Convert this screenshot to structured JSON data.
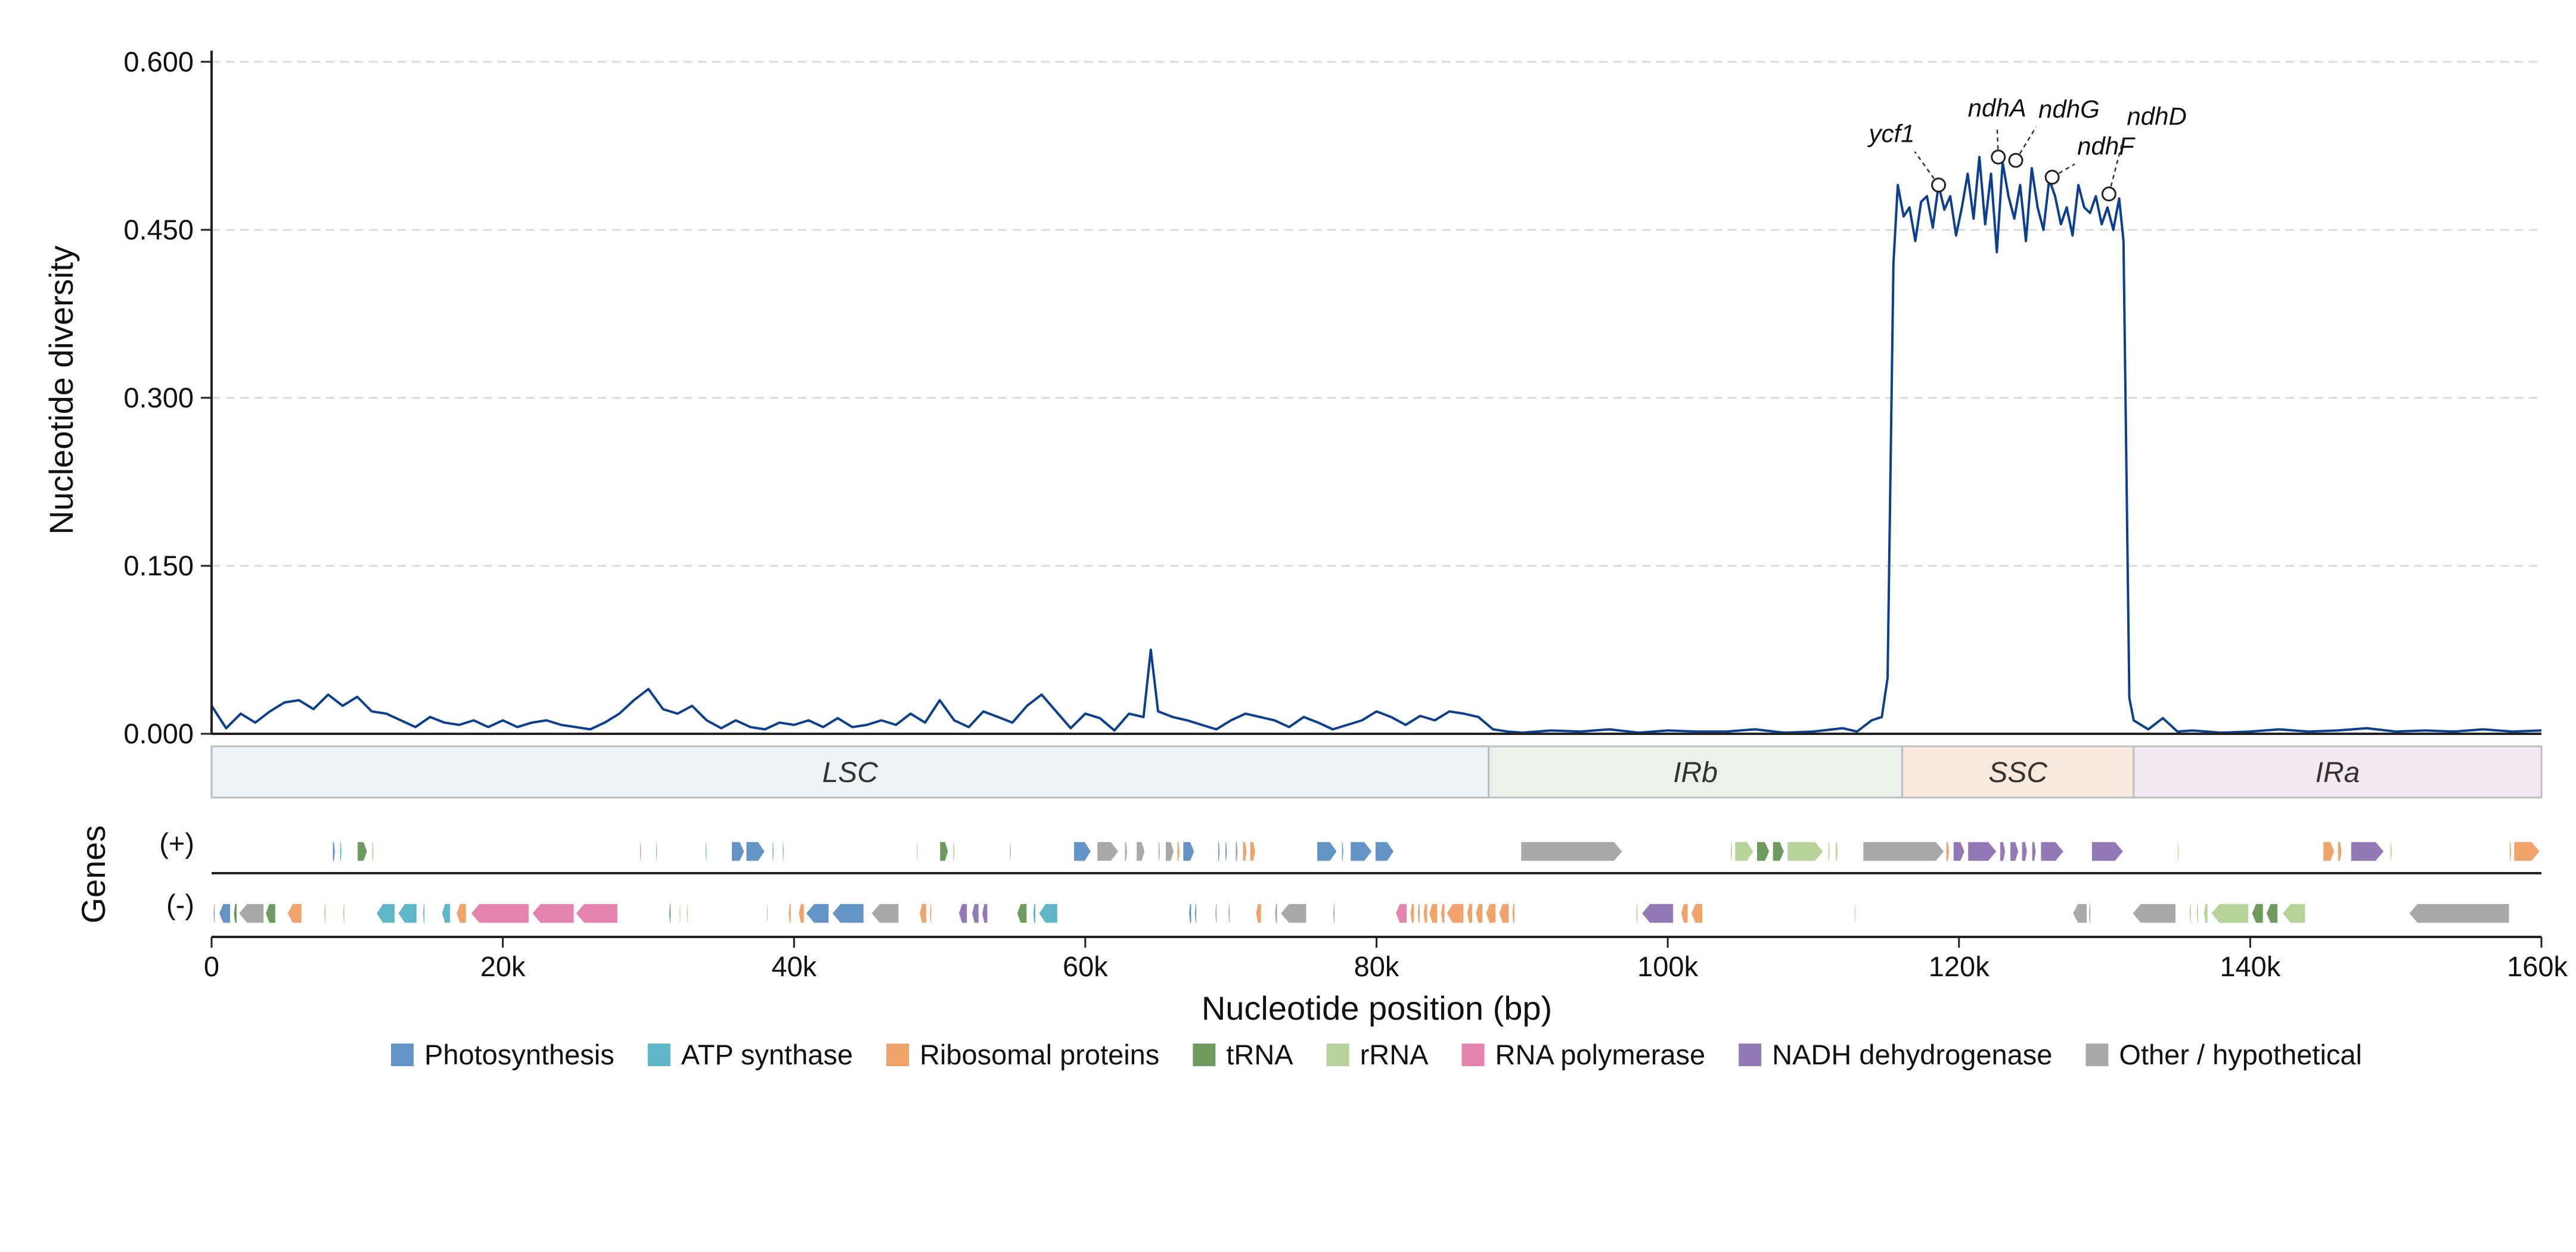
{
  "chart_data": {
    "type": "line",
    "ylabel": "Nucleotide diversity",
    "xlabel": "Nucleotide position (bp)",
    "track_label": "Genes",
    "strand_labels": [
      "(+)",
      "(-)"
    ],
    "xlim": [
      0,
      160000
    ],
    "ylim": [
      0,
      0.61
    ],
    "y_ticks": [
      0.0,
      0.15,
      0.3,
      0.45,
      0.6
    ],
    "y_tick_labels": [
      "0.000",
      "0.150",
      "0.300",
      "0.450",
      "0.600"
    ],
    "x_ticks": [
      0,
      20000,
      40000,
      60000,
      80000,
      100000,
      120000,
      140000,
      160000
    ],
    "x_tick_labels": [
      "0",
      "20k",
      "40k",
      "60k",
      "80k",
      "100k",
      "120k",
      "140k",
      "160k"
    ],
    "grid": "horizontal dashed",
    "line_color": "#0d3f8f",
    "series": [
      {
        "x": [
          0,
          1000,
          2000,
          3000,
          4000,
          5000,
          6000,
          7000,
          8000,
          9000,
          10000,
          11000,
          12000,
          13000,
          14000,
          15000,
          16000,
          17000,
          18000,
          19000,
          20000,
          21000,
          22000,
          23000,
          24000,
          25000,
          26000,
          27000,
          28000,
          29000,
          30000,
          31000,
          32000,
          33000,
          34000,
          35000,
          36000,
          37000,
          38000,
          39000,
          40000,
          41000,
          42000,
          43000,
          44000,
          45000,
          46000,
          47000,
          48000,
          49000,
          50000,
          51000,
          52000,
          53000,
          54000,
          55000,
          56000,
          57000,
          58000,
          59000,
          60000,
          61000,
          62000,
          63000,
          64000,
          64500,
          65000,
          66000,
          67000,
          68000,
          69000,
          70000,
          71000,
          72000,
          73000,
          74000,
          75000,
          76000,
          77000,
          78000,
          79000,
          80000,
          81000,
          82000,
          83000,
          84000,
          85000,
          86000,
          87000,
          88000,
          89000,
          90000,
          92000,
          94000,
          96000,
          98000,
          100000,
          102000,
          104000,
          106000,
          108000,
          110000,
          112000,
          113000,
          114000,
          114700,
          115100,
          115500,
          115800,
          116200,
          116600,
          117000,
          117400,
          117800,
          118200,
          118600,
          119000,
          119400,
          119800,
          120200,
          120600,
          121000,
          121400,
          121800,
          122200,
          122600,
          123000,
          123400,
          123800,
          124200,
          124600,
          125000,
          125400,
          125800,
          126200,
          126600,
          127000,
          127400,
          127800,
          128200,
          128600,
          129000,
          129400,
          129800,
          130200,
          130600,
          131000,
          131300,
          131700,
          132000,
          132500,
          133000,
          134000,
          135000,
          136000,
          138000,
          140000,
          142000,
          144000,
          146000,
          148000,
          150000,
          152000,
          154000,
          156000,
          158000,
          160000
        ],
        "y": [
          0.025,
          0.005,
          0.018,
          0.01,
          0.02,
          0.028,
          0.03,
          0.022,
          0.035,
          0.025,
          0.033,
          0.02,
          0.018,
          0.012,
          0.006,
          0.015,
          0.01,
          0.008,
          0.012,
          0.006,
          0.012,
          0.006,
          0.01,
          0.012,
          0.008,
          0.006,
          0.004,
          0.01,
          0.018,
          0.03,
          0.04,
          0.022,
          0.018,
          0.025,
          0.012,
          0.005,
          0.012,
          0.006,
          0.004,
          0.01,
          0.008,
          0.012,
          0.006,
          0.014,
          0.006,
          0.008,
          0.012,
          0.008,
          0.018,
          0.01,
          0.03,
          0.012,
          0.006,
          0.02,
          0.015,
          0.01,
          0.025,
          0.035,
          0.02,
          0.005,
          0.018,
          0.014,
          0.003,
          0.018,
          0.015,
          0.075,
          0.02,
          0.015,
          0.012,
          0.008,
          0.004,
          0.012,
          0.018,
          0.015,
          0.012,
          0.006,
          0.015,
          0.01,
          0.004,
          0.008,
          0.012,
          0.02,
          0.015,
          0.008,
          0.016,
          0.012,
          0.02,
          0.018,
          0.015,
          0.004,
          0.002,
          0.001,
          0.003,
          0.002,
          0.004,
          0.001,
          0.003,
          0.002,
          0.002,
          0.004,
          0.001,
          0.002,
          0.005,
          0.002,
          0.012,
          0.015,
          0.05,
          0.42,
          0.49,
          0.462,
          0.47,
          0.44,
          0.475,
          0.48,
          0.452,
          0.49,
          0.468,
          0.48,
          0.445,
          0.47,
          0.5,
          0.46,
          0.515,
          0.455,
          0.5,
          0.43,
          0.51,
          0.48,
          0.46,
          0.49,
          0.44,
          0.505,
          0.47,
          0.45,
          0.495,
          0.48,
          0.455,
          0.47,
          0.445,
          0.49,
          0.47,
          0.465,
          0.48,
          0.455,
          0.47,
          0.45,
          0.478,
          0.44,
          0.032,
          0.012,
          0.008,
          0.004,
          0.014,
          0.002,
          0.003,
          0.001,
          0.002,
          0.004,
          0.002,
          0.003,
          0.005,
          0.002,
          0.003,
          0.002,
          0.004,
          0.002,
          0.003
        ]
      }
    ],
    "annotations": [
      {
        "label": "ycf1",
        "x": 118600,
        "y": 0.49
      },
      {
        "label": "ndhA",
        "x": 122700,
        "y": 0.515
      },
      {
        "label": "ndhG",
        "x": 123900,
        "y": 0.512
      },
      {
        "label": "ndhF",
        "x": 126400,
        "y": 0.497
      },
      {
        "label": "ndhD",
        "x": 130300,
        "y": 0.482
      }
    ],
    "regions": [
      {
        "name": "LSC",
        "start": 0,
        "end": 87700,
        "color": "#eef2f5"
      },
      {
        "name": "IRb",
        "start": 87700,
        "end": 116100,
        "color": "#ebf2e9"
      },
      {
        "name": "SSC",
        "start": 116100,
        "end": 132000,
        "color": "#f9e9dc"
      },
      {
        "name": "IRa",
        "start": 132000,
        "end": 160000,
        "color": "#f1e8f0"
      }
    ],
    "categories": [
      {
        "name": "Photosynthesis",
        "color": "#6494c6"
      },
      {
        "name": "ATP synthase",
        "color": "#5fb6c6"
      },
      {
        "name": "Ribosomal proteins",
        "color": "#f0a46b"
      },
      {
        "name": "tRNA",
        "color": "#6e9a5e"
      },
      {
        "name": "rRNA",
        "color": "#b5d39a"
      },
      {
        "name": "RNA polymerase",
        "color": "#e284ad"
      },
      {
        "name": "NADH dehydrogenase",
        "color": "#9479b7"
      },
      {
        "name": "Other / hypothetical",
        "color": "#a9a9a9"
      }
    ],
    "genes_plus": [
      {
        "s": 8300,
        "e": 8500,
        "c": 0
      },
      {
        "s": 8800,
        "e": 8950,
        "c": 1
      },
      {
        "s": 10000,
        "e": 10700,
        "c": 3
      },
      {
        "s": 11000,
        "e": 11150,
        "c": 4
      },
      {
        "s": 29400,
        "e": 29500,
        "c": 5
      },
      {
        "s": 30500,
        "e": 30600,
        "c": 7
      },
      {
        "s": 33900,
        "e": 34000,
        "c": 1
      },
      {
        "s": 35700,
        "e": 36600,
        "c": 0
      },
      {
        "s": 36700,
        "e": 38000,
        "c": 0
      },
      {
        "s": 38500,
        "e": 38600,
        "c": 0
      },
      {
        "s": 39200,
        "e": 39300,
        "c": 1
      },
      {
        "s": 48400,
        "e": 48500,
        "c": 4
      },
      {
        "s": 50000,
        "e": 50600,
        "c": 3
      },
      {
        "s": 50900,
        "e": 51050,
        "c": 4
      },
      {
        "s": 54800,
        "e": 54900,
        "c": 7
      },
      {
        "s": 59200,
        "e": 60400,
        "c": 0
      },
      {
        "s": 60800,
        "e": 62300,
        "c": 7
      },
      {
        "s": 62700,
        "e": 62900,
        "c": 7
      },
      {
        "s": 63500,
        "e": 64100,
        "c": 7
      },
      {
        "s": 65000,
        "e": 65150,
        "c": 7
      },
      {
        "s": 65500,
        "e": 66100,
        "c": 7
      },
      {
        "s": 66300,
        "e": 66500,
        "c": 2
      },
      {
        "s": 66700,
        "e": 67500,
        "c": 0
      },
      {
        "s": 69100,
        "e": 69250,
        "c": 0
      },
      {
        "s": 69600,
        "e": 69750,
        "c": 0
      },
      {
        "s": 70300,
        "e": 70500,
        "c": 7
      },
      {
        "s": 70800,
        "e": 71100,
        "c": 2
      },
      {
        "s": 71300,
        "e": 71700,
        "c": 2
      },
      {
        "s": 75900,
        "e": 77300,
        "c": 0
      },
      {
        "s": 77600,
        "e": 77750,
        "c": 0
      },
      {
        "s": 78200,
        "e": 79700,
        "c": 0
      },
      {
        "s": 79900,
        "e": 81200,
        "c": 0
      },
      {
        "s": 89900,
        "e": 96900,
        "c": 7
      },
      {
        "s": 104300,
        "e": 104450,
        "c": 4
      },
      {
        "s": 104600,
        "e": 105900,
        "c": 4
      },
      {
        "s": 106100,
        "e": 107000,
        "c": 3
      },
      {
        "s": 107200,
        "e": 108000,
        "c": 3
      },
      {
        "s": 108200,
        "e": 110700,
        "c": 4
      },
      {
        "s": 111000,
        "e": 111150,
        "c": 4
      },
      {
        "s": 111500,
        "e": 111700,
        "c": 4
      },
      {
        "s": 113400,
        "e": 119000,
        "c": 7
      },
      {
        "s": 119100,
        "e": 119350,
        "c": 2
      },
      {
        "s": 119600,
        "e": 120400,
        "c": 6
      },
      {
        "s": 120600,
        "e": 122600,
        "c": 6
      },
      {
        "s": 122800,
        "e": 123200,
        "c": 6
      },
      {
        "s": 123500,
        "e": 124100,
        "c": 6
      },
      {
        "s": 124300,
        "e": 124700,
        "c": 6
      },
      {
        "s": 125000,
        "e": 125300,
        "c": 6
      },
      {
        "s": 125600,
        "e": 127200,
        "c": 6
      },
      {
        "s": 129100,
        "e": 131300,
        "c": 6
      },
      {
        "s": 135000,
        "e": 135120,
        "c": 4
      },
      {
        "s": 145000,
        "e": 145800,
        "c": 2
      },
      {
        "s": 146000,
        "e": 146300,
        "c": 2
      },
      {
        "s": 146900,
        "e": 149200,
        "c": 6
      },
      {
        "s": 149600,
        "e": 149750,
        "c": 4
      },
      {
        "s": 157800,
        "e": 157950,
        "c": 2
      },
      {
        "s": 158100,
        "e": 159900,
        "c": 2
      }
    ],
    "genes_minus": [
      {
        "s": 100,
        "e": 250,
        "c": 7
      },
      {
        "s": 500,
        "e": 1300,
        "c": 0
      },
      {
        "s": 1500,
        "e": 1750,
        "c": 3
      },
      {
        "s": 1850,
        "e": 3600,
        "c": 7
      },
      {
        "s": 3700,
        "e": 4400,
        "c": 3
      },
      {
        "s": 5200,
        "e": 6200,
        "c": 2
      },
      {
        "s": 7700,
        "e": 7850,
        "c": 4
      },
      {
        "s": 9000,
        "e": 9150,
        "c": 4
      },
      {
        "s": 11300,
        "e": 12600,
        "c": 1
      },
      {
        "s": 12800,
        "e": 14100,
        "c": 1
      },
      {
        "s": 14500,
        "e": 14650,
        "c": 1
      },
      {
        "s": 15800,
        "e": 16400,
        "c": 1
      },
      {
        "s": 16800,
        "e": 17500,
        "c": 2
      },
      {
        "s": 17800,
        "e": 21800,
        "c": 5
      },
      {
        "s": 22000,
        "e": 24900,
        "c": 5
      },
      {
        "s": 25000,
        "e": 27900,
        "c": 5
      },
      {
        "s": 31400,
        "e": 31550,
        "c": 0
      },
      {
        "s": 32100,
        "e": 32200,
        "c": 4
      },
      {
        "s": 32600,
        "e": 32700,
        "c": 4
      },
      {
        "s": 38100,
        "e": 38200,
        "c": 4
      },
      {
        "s": 39600,
        "e": 39800,
        "c": 2
      },
      {
        "s": 40300,
        "e": 40700,
        "c": 2
      },
      {
        "s": 40800,
        "e": 42400,
        "c": 0
      },
      {
        "s": 42600,
        "e": 44800,
        "c": 0
      },
      {
        "s": 45300,
        "e": 47200,
        "c": 7
      },
      {
        "s": 48600,
        "e": 49100,
        "c": 2
      },
      {
        "s": 49300,
        "e": 49450,
        "c": 2
      },
      {
        "s": 51300,
        "e": 51900,
        "c": 6
      },
      {
        "s": 52200,
        "e": 52700,
        "c": 6
      },
      {
        "s": 52900,
        "e": 53300,
        "c": 6
      },
      {
        "s": 55300,
        "e": 56000,
        "c": 3
      },
      {
        "s": 56400,
        "e": 56600,
        "c": 1
      },
      {
        "s": 56800,
        "e": 58100,
        "c": 1
      },
      {
        "s": 67100,
        "e": 67300,
        "c": 0
      },
      {
        "s": 67500,
        "e": 67650,
        "c": 0
      },
      {
        "s": 68900,
        "e": 69050,
        "c": 7
      },
      {
        "s": 69800,
        "e": 69950,
        "c": 7
      },
      {
        "s": 71700,
        "e": 72100,
        "c": 2
      },
      {
        "s": 73000,
        "e": 73200,
        "c": 7
      },
      {
        "s": 73400,
        "e": 75200,
        "c": 7
      },
      {
        "s": 77000,
        "e": 77150,
        "c": 7
      },
      {
        "s": 81300,
        "e": 82100,
        "c": 5
      },
      {
        "s": 82300,
        "e": 82600,
        "c": 2
      },
      {
        "s": 82800,
        "e": 83000,
        "c": 2
      },
      {
        "s": 83200,
        "e": 83500,
        "c": 2
      },
      {
        "s": 83600,
        "e": 84200,
        "c": 2
      },
      {
        "s": 84400,
        "e": 84700,
        "c": 2
      },
      {
        "s": 84800,
        "e": 86000,
        "c": 2
      },
      {
        "s": 86200,
        "e": 86600,
        "c": 2
      },
      {
        "s": 86800,
        "e": 87300,
        "c": 2
      },
      {
        "s": 87500,
        "e": 88200,
        "c": 2
      },
      {
        "s": 88400,
        "e": 89100,
        "c": 2
      },
      {
        "s": 89300,
        "e": 89500,
        "c": 2
      },
      {
        "s": 97800,
        "e": 97950,
        "c": 4
      },
      {
        "s": 98200,
        "e": 100400,
        "c": 6
      },
      {
        "s": 100900,
        "e": 101400,
        "c": 2
      },
      {
        "s": 101600,
        "e": 102400,
        "c": 2
      },
      {
        "s": 112800,
        "e": 112920,
        "c": 4
      },
      {
        "s": 127800,
        "e": 128800,
        "c": 7
      },
      {
        "s": 128900,
        "e": 129050,
        "c": 7
      },
      {
        "s": 131900,
        "e": 134900,
        "c": 7
      },
      {
        "s": 135800,
        "e": 135950,
        "c": 4
      },
      {
        "s": 136300,
        "e": 136450,
        "c": 4
      },
      {
        "s": 136800,
        "e": 137100,
        "c": 4
      },
      {
        "s": 137300,
        "e": 139900,
        "c": 4
      },
      {
        "s": 140100,
        "e": 140900,
        "c": 3
      },
      {
        "s": 141100,
        "e": 141900,
        "c": 3
      },
      {
        "s": 142200,
        "e": 143800,
        "c": 4
      },
      {
        "s": 150900,
        "e": 157800,
        "c": 7
      }
    ]
  }
}
